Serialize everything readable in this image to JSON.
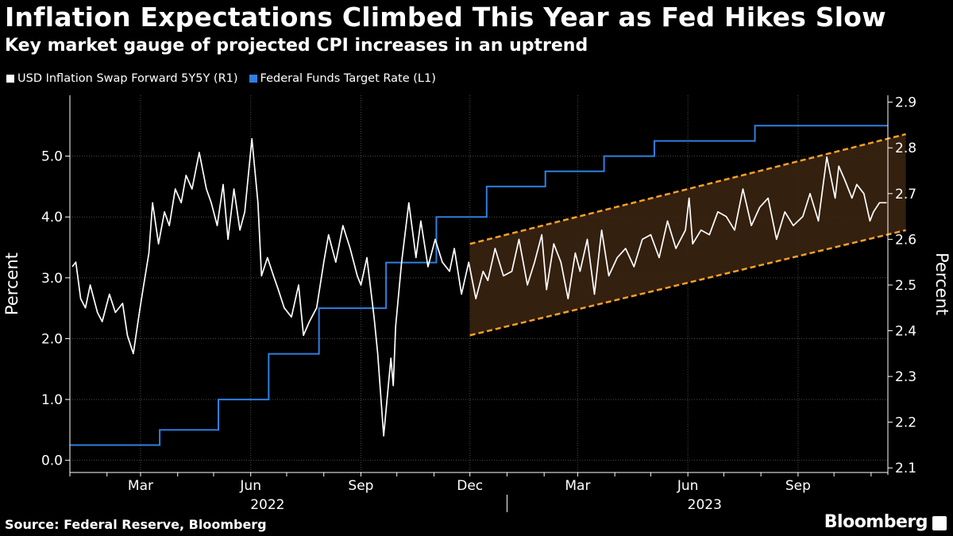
{
  "header": {
    "title": "Inflation Expectations Climbed This Year as Fed Hikes Slow",
    "subtitle": "Key market gauge of projected CPI increases in an uptrend"
  },
  "legend": [
    {
      "label": "USD Inflation Swap Forward 5Y5Y (R1)",
      "color": "#ffffff"
    },
    {
      "label": "Federal Funds Target Rate (L1)",
      "color": "#2f7fe0"
    }
  ],
  "footer": {
    "source": "Source: Federal Reserve, Bloomberg",
    "brand": "Bloomberg"
  },
  "chart_data": {
    "type": "line",
    "title": "Inflation Expectations Climbed This Year as Fed Hikes Slow",
    "subtitle": "Key market gauge of projected CPI increases in an uptrend",
    "x_range": [
      "2022-01-01",
      "2023-11-15"
    ],
    "x_ticks": [
      "Mar",
      "Jun",
      "Sep",
      "Dec",
      "Mar",
      "Jun",
      "Sep"
    ],
    "x_tick_dates": [
      "2022-03-01",
      "2022-06-01",
      "2022-09-01",
      "2022-12-01",
      "2023-03-01",
      "2023-06-01",
      "2023-09-01"
    ],
    "x_years": [
      {
        "label": "2022",
        "date": "2022-06-15"
      },
      {
        "label": "2023",
        "date": "2023-06-15"
      }
    ],
    "left_axis": {
      "label": "Percent",
      "ticks": [
        "0.0",
        "1.0",
        "2.0",
        "3.0",
        "4.0",
        "5.0"
      ],
      "ylim": [
        -0.2,
        6.0
      ]
    },
    "right_axis": {
      "label": "Percent",
      "ticks": [
        "2.1",
        "2.2",
        "2.3",
        "2.4",
        "2.5",
        "2.6",
        "2.7",
        "2.8",
        "2.9"
      ],
      "ylim": [
        2.09,
        2.915
      ]
    },
    "series": [
      {
        "name": "Federal Funds Target Rate (L1)",
        "axis": "left",
        "color": "#2f7fe0",
        "step": true,
        "x": [
          "2022-01-01",
          "2022-03-17",
          "2022-05-05",
          "2022-06-16",
          "2022-07-28",
          "2022-09-22",
          "2022-11-03",
          "2022-12-15",
          "2023-02-02",
          "2023-03-23",
          "2023-05-04",
          "2023-07-27",
          "2023-11-15"
        ],
        "values": [
          0.25,
          0.5,
          1.0,
          1.75,
          2.5,
          3.25,
          4.0,
          4.5,
          4.75,
          5.0,
          5.25,
          5.5,
          5.5
        ]
      },
      {
        "name": "USD Inflation Swap Forward 5Y5Y (R1)",
        "axis": "right",
        "color": "#ffffff",
        "x": [
          "2022-01-03",
          "2022-01-06",
          "2022-01-10",
          "2022-01-14",
          "2022-01-18",
          "2022-01-24",
          "2022-01-28",
          "2022-02-03",
          "2022-02-08",
          "2022-02-14",
          "2022-02-18",
          "2022-02-23",
          "2022-02-28",
          "2022-03-03",
          "2022-03-08",
          "2022-03-11",
          "2022-03-16",
          "2022-03-21",
          "2022-03-25",
          "2022-03-30",
          "2022-04-04",
          "2022-04-08",
          "2022-04-13",
          "2022-04-19",
          "2022-04-25",
          "2022-04-29",
          "2022-05-04",
          "2022-05-09",
          "2022-05-13",
          "2022-05-18",
          "2022-05-23",
          "2022-05-27",
          "2022-06-02",
          "2022-06-07",
          "2022-06-10",
          "2022-06-15",
          "2022-06-20",
          "2022-06-24",
          "2022-06-29",
          "2022-07-05",
          "2022-07-11",
          "2022-07-15",
          "2022-07-20",
          "2022-07-26",
          "2022-08-01",
          "2022-08-05",
          "2022-08-11",
          "2022-08-17",
          "2022-08-23",
          "2022-08-29",
          "2022-09-01",
          "2022-09-06",
          "2022-09-12",
          "2022-09-15",
          "2022-09-20",
          "2022-09-26",
          "2022-09-28",
          "2022-09-30",
          "2022-10-05",
          "2022-10-11",
          "2022-10-17",
          "2022-10-21",
          "2022-10-27",
          "2022-11-02",
          "2022-11-08",
          "2022-11-14",
          "2022-11-18",
          "2022-11-24",
          "2022-11-30",
          "2022-12-06",
          "2022-12-12",
          "2022-12-16",
          "2022-12-22",
          "2022-12-29",
          "2023-01-05",
          "2023-01-11",
          "2023-01-18",
          "2023-01-24",
          "2023-01-30",
          "2023-02-03",
          "2023-02-09",
          "2023-02-15",
          "2023-02-21",
          "2023-02-27",
          "2023-03-03",
          "2023-03-09",
          "2023-03-15",
          "2023-03-21",
          "2023-03-27",
          "2023-04-03",
          "2023-04-10",
          "2023-04-17",
          "2023-04-24",
          "2023-05-01",
          "2023-05-08",
          "2023-05-15",
          "2023-05-22",
          "2023-05-30",
          "2023-06-02",
          "2023-06-05",
          "2023-06-12",
          "2023-06-19",
          "2023-06-26",
          "2023-07-03",
          "2023-07-10",
          "2023-07-17",
          "2023-07-24",
          "2023-07-31",
          "2023-08-07",
          "2023-08-14",
          "2023-08-21",
          "2023-08-28",
          "2023-09-05",
          "2023-09-11",
          "2023-09-18",
          "2023-09-25",
          "2023-10-02",
          "2023-10-05",
          "2023-10-10",
          "2023-10-16",
          "2023-10-20",
          "2023-10-26",
          "2023-10-31",
          "2023-11-03",
          "2023-11-08",
          "2023-11-14"
        ],
        "values": [
          2.54,
          2.55,
          2.47,
          2.45,
          2.5,
          2.44,
          2.42,
          2.48,
          2.44,
          2.46,
          2.39,
          2.35,
          2.44,
          2.49,
          2.57,
          2.68,
          2.59,
          2.66,
          2.63,
          2.71,
          2.68,
          2.74,
          2.71,
          2.79,
          2.71,
          2.68,
          2.63,
          2.72,
          2.6,
          2.71,
          2.62,
          2.66,
          2.82,
          2.68,
          2.52,
          2.56,
          2.52,
          2.49,
          2.45,
          2.43,
          2.5,
          2.39,
          2.42,
          2.45,
          2.55,
          2.61,
          2.55,
          2.63,
          2.58,
          2.52,
          2.5,
          2.56,
          2.43,
          2.35,
          2.17,
          2.34,
          2.28,
          2.41,
          2.55,
          2.68,
          2.56,
          2.64,
          2.54,
          2.6,
          2.55,
          2.53,
          2.58,
          2.48,
          2.55,
          2.47,
          2.53,
          2.51,
          2.58,
          2.52,
          2.53,
          2.6,
          2.5,
          2.55,
          2.61,
          2.49,
          2.59,
          2.55,
          2.47,
          2.57,
          2.53,
          2.6,
          2.48,
          2.62,
          2.52,
          2.56,
          2.58,
          2.54,
          2.6,
          2.61,
          2.56,
          2.64,
          2.58,
          2.62,
          2.69,
          2.59,
          2.62,
          2.61,
          2.66,
          2.65,
          2.62,
          2.71,
          2.63,
          2.67,
          2.69,
          2.6,
          2.66,
          2.63,
          2.65,
          2.7,
          2.64,
          2.78,
          2.69,
          2.76,
          2.73,
          2.69,
          2.72,
          2.7,
          2.64,
          2.66,
          2.68,
          2.68
        ]
      }
    ],
    "annotations": [
      {
        "type": "trend-channel",
        "axis": "right",
        "color": "#f5a02a",
        "fill": "#3a2410",
        "upper": {
          "x": [
            "2022-12-01",
            "2023-11-30"
          ],
          "y": [
            2.59,
            2.83
          ]
        },
        "lower": {
          "x": [
            "2022-12-01",
            "2023-11-30"
          ],
          "y": [
            2.39,
            2.62
          ]
        }
      }
    ],
    "grid": true
  }
}
